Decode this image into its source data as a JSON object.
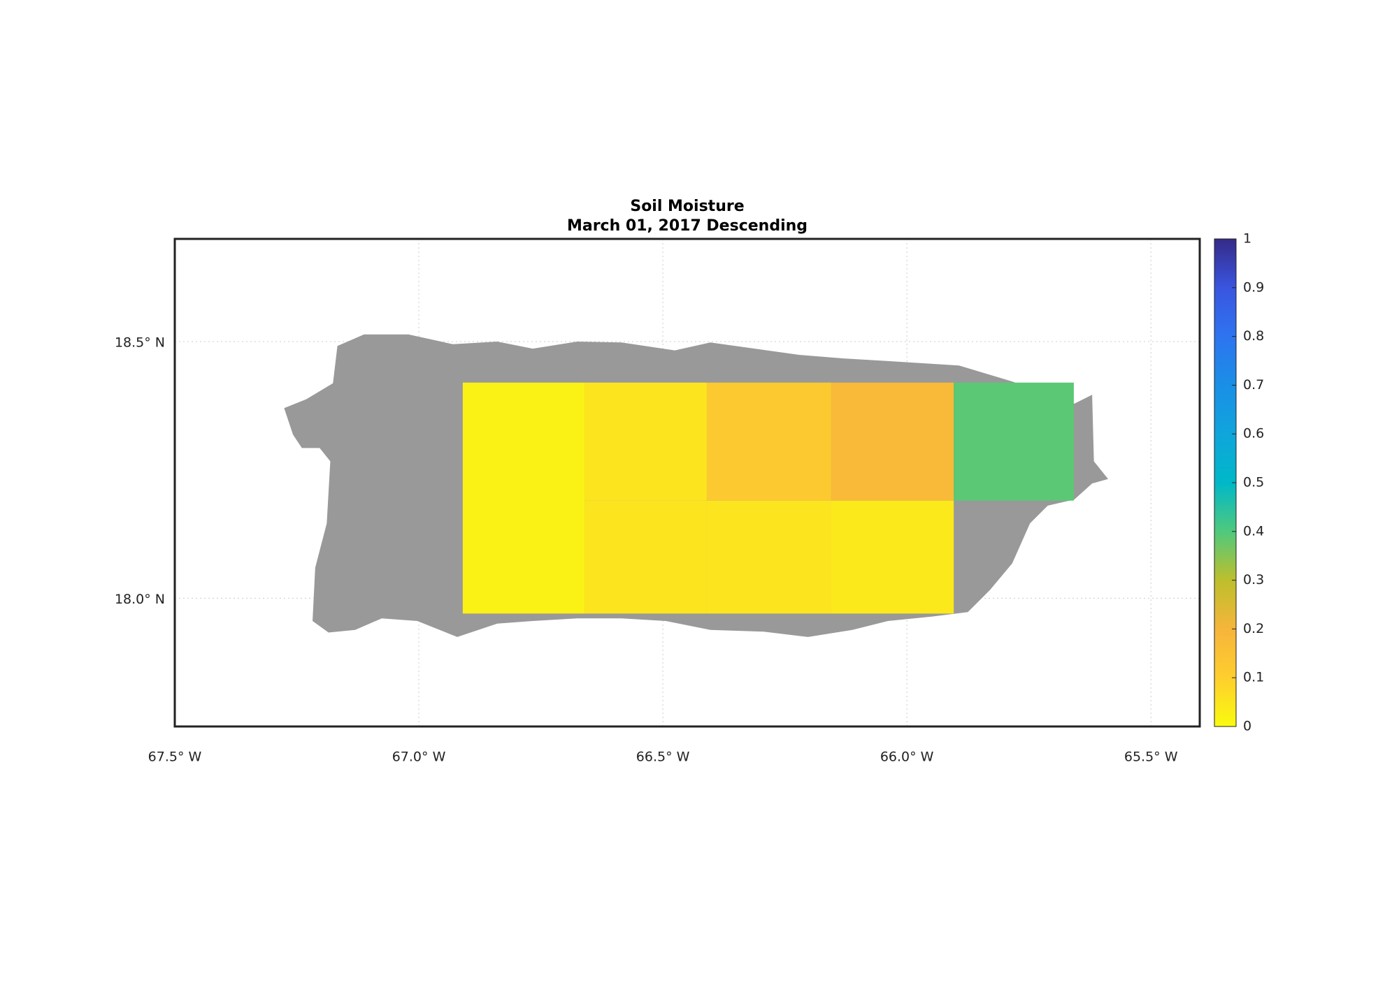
{
  "chart_data": {
    "type": "gridmap",
    "title": "Soil Moisture",
    "subtitle": "March 01, 2017 Descending",
    "xlim": [
      -67.5,
      -65.4
    ],
    "ylim": [
      17.75,
      18.7
    ],
    "xticks": [
      {
        "value": -67.5,
        "label": "67.5° W"
      },
      {
        "value": -67.0,
        "label": "67.0° W"
      },
      {
        "value": -66.5,
        "label": "66.5° W"
      },
      {
        "value": -66.0,
        "label": "66.0° W"
      },
      {
        "value": -65.5,
        "label": "65.5° W"
      }
    ],
    "yticks": [
      {
        "value": 18.0,
        "label": "18.0° N"
      },
      {
        "value": 18.5,
        "label": "18.5° N"
      }
    ],
    "grid": true,
    "clim": [
      0,
      1
    ],
    "cticks": [
      0,
      0.1,
      0.2,
      0.3,
      0.4,
      0.5,
      0.6,
      0.7,
      0.8,
      0.9,
      1
    ],
    "colormap": [
      "#f9fb0e",
      "#fece2e",
      "#f6b53b",
      "#bdbf2c",
      "#4fc97d",
      "#00b8c8",
      "#10a5dc",
      "#1a8fe6",
      "#2e74f0",
      "#3a55e0",
      "#352a87"
    ],
    "cells": [
      {
        "lon": [
          -66.91,
          -66.66
        ],
        "lat": [
          17.97,
          18.42
        ],
        "value": 0.02
      },
      {
        "lon": [
          -66.66,
          -66.41
        ],
        "lat": [
          18.19,
          18.42
        ],
        "value": 0.05
      },
      {
        "lon": [
          -66.41,
          -66.155
        ],
        "lat": [
          18.19,
          18.42
        ],
        "value": 0.12
      },
      {
        "lon": [
          -66.155,
          -65.904
        ],
        "lat": [
          18.19,
          18.42
        ],
        "value": 0.18
      },
      {
        "lon": [
          -65.904,
          -65.658
        ],
        "lat": [
          18.19,
          18.42
        ],
        "value": 0.39
      },
      {
        "lon": [
          -66.66,
          -66.41
        ],
        "lat": [
          17.97,
          18.19
        ],
        "value": 0.05
      },
      {
        "lon": [
          -66.41,
          -66.155
        ],
        "lat": [
          17.97,
          18.19
        ],
        "value": 0.05
      },
      {
        "lon": [
          -66.155,
          -65.904
        ],
        "lat": [
          17.97,
          18.19
        ],
        "value": 0.04
      }
    ]
  }
}
